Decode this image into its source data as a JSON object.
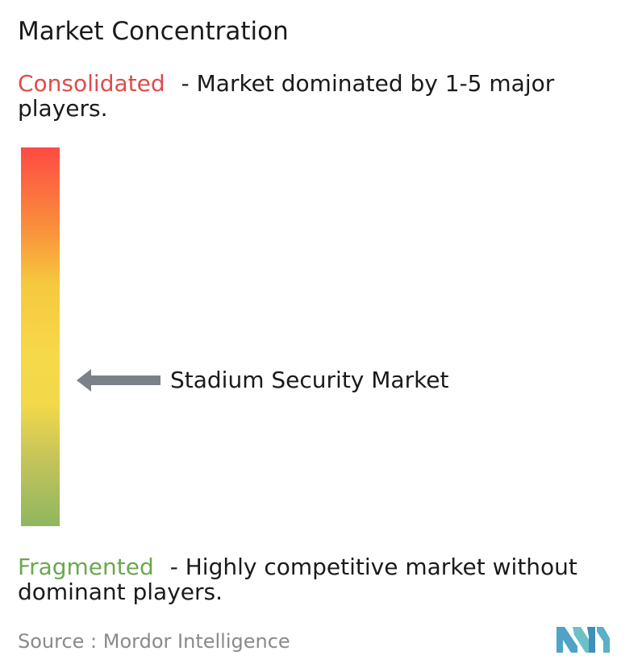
{
  "chart_data": {
    "type": "concentration-scale",
    "title": "Market Concentration",
    "scale": {
      "top_label": "Consolidated",
      "top_description": "- Market dominated by 1-5 major players.",
      "bottom_label": "Fragmented",
      "bottom_description": "- Highly competitive market without dominant players.",
      "gradient_colors": [
        "#ff4a44",
        "#f98b3c",
        "#f6c83e",
        "#f6d948",
        "#8fb75f"
      ]
    },
    "marker": {
      "label": "Stadium Security Market",
      "level": 0.62,
      "arrow_color": "#7b8189"
    },
    "source": "Source : Mordor Intelligence",
    "colors": {
      "consolidated": "#e04b4b",
      "fragmented": "#6aa84f",
      "logo": "#5ab0c4"
    }
  }
}
